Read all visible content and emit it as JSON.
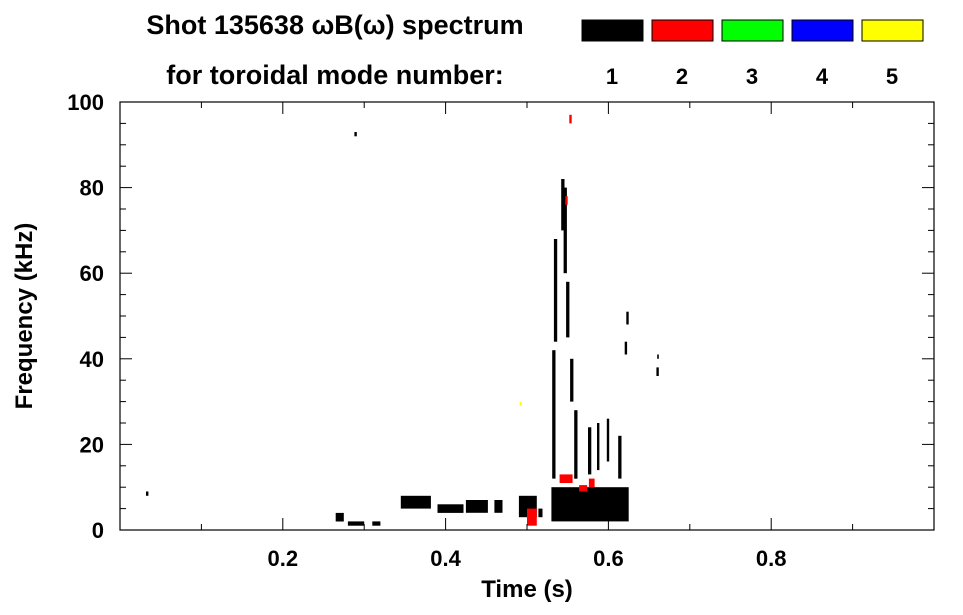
{
  "chart_data": {
    "type": "heatmap",
    "title_line1": "Shot 135638 ωB(ω) spectrum",
    "title_line2": "for toroidal mode number:",
    "xlabel": "Time (s)",
    "ylabel": "Frequency (kHz)",
    "xlim": [
      0.0,
      1.0
    ],
    "ylim": [
      0,
      100
    ],
    "xticks": [
      {
        "value": 0.2,
        "label": "0.2"
      },
      {
        "value": 0.4,
        "label": "0.4"
      },
      {
        "value": 0.6,
        "label": "0.6"
      },
      {
        "value": 0.8,
        "label": "0.8"
      }
    ],
    "yticks": [
      {
        "value": 0,
        "label": "0"
      },
      {
        "value": 20,
        "label": "20"
      },
      {
        "value": 40,
        "label": "40"
      },
      {
        "value": 60,
        "label": "60"
      },
      {
        "value": 80,
        "label": "80"
      },
      {
        "value": 100,
        "label": "100"
      }
    ],
    "grid": false,
    "legend_position": "top-right",
    "legend": [
      {
        "mode": "1",
        "color": "#000000"
      },
      {
        "mode": "2",
        "color": "#ff0000"
      },
      {
        "mode": "3",
        "color": "#00ff00"
      },
      {
        "mode": "4",
        "color": "#0000ff"
      },
      {
        "mode": "5",
        "color": "#ffff00"
      }
    ],
    "features": [
      {
        "mode": "1",
        "t": [
          0.53,
          0.625
        ],
        "f": [
          2,
          10
        ]
      },
      {
        "mode": "1",
        "t": [
          0.531,
          0.535
        ],
        "f": [
          12,
          42
        ]
      },
      {
        "mode": "1",
        "t": [
          0.533,
          0.537
        ],
        "f": [
          44,
          68
        ]
      },
      {
        "mode": "1",
        "t": [
          0.542,
          0.546
        ],
        "f": [
          70,
          82
        ]
      },
      {
        "mode": "1",
        "t": [
          0.545,
          0.549
        ],
        "f": [
          60,
          80
        ]
      },
      {
        "mode": "1",
        "t": [
          0.548,
          0.552
        ],
        "f": [
          45,
          58
        ]
      },
      {
        "mode": "1",
        "t": [
          0.553,
          0.557
        ],
        "f": [
          30,
          40
        ]
      },
      {
        "mode": "1",
        "t": [
          0.558,
          0.562
        ],
        "f": [
          12,
          28
        ]
      },
      {
        "mode": "1",
        "t": [
          0.575,
          0.579
        ],
        "f": [
          13,
          24
        ]
      },
      {
        "mode": "1",
        "t": [
          0.586,
          0.589
        ],
        "f": [
          14,
          25
        ]
      },
      {
        "mode": "1",
        "t": [
          0.598,
          0.601
        ],
        "f": [
          16,
          26
        ]
      },
      {
        "mode": "1",
        "t": [
          0.612,
          0.616
        ],
        "f": [
          12,
          22
        ]
      },
      {
        "mode": "1",
        "t": [
          0.62,
          0.623
        ],
        "f": [
          41,
          44
        ]
      },
      {
        "mode": "1",
        "t": [
          0.622,
          0.625
        ],
        "f": [
          48,
          51
        ]
      },
      {
        "mode": "1",
        "t": [
          0.659,
          0.662
        ],
        "f": [
          36,
          38
        ]
      },
      {
        "mode": "1",
        "t": [
          0.66,
          0.662
        ],
        "f": [
          40,
          41
        ]
      },
      {
        "mode": "1",
        "t": [
          0.345,
          0.382
        ],
        "f": [
          5,
          8
        ]
      },
      {
        "mode": "1",
        "t": [
          0.39,
          0.422
        ],
        "f": [
          4,
          6
        ]
      },
      {
        "mode": "1",
        "t": [
          0.425,
          0.452
        ],
        "f": [
          4,
          7
        ]
      },
      {
        "mode": "1",
        "t": [
          0.46,
          0.47
        ],
        "f": [
          4,
          7
        ]
      },
      {
        "mode": "1",
        "t": [
          0.49,
          0.512
        ],
        "f": [
          3,
          8
        ]
      },
      {
        "mode": "1",
        "t": [
          0.514,
          0.519
        ],
        "f": [
          3,
          5
        ]
      },
      {
        "mode": "1",
        "t": [
          0.28,
          0.3
        ],
        "f": [
          1,
          2
        ]
      },
      {
        "mode": "1",
        "t": [
          0.31,
          0.32
        ],
        "f": [
          1,
          2
        ]
      },
      {
        "mode": "1",
        "t": [
          0.265,
          0.275
        ],
        "f": [
          2,
          4
        ]
      },
      {
        "mode": "1",
        "t": [
          0.288,
          0.291
        ],
        "f": [
          92,
          93
        ]
      },
      {
        "mode": "1",
        "t": [
          0.032,
          0.035
        ],
        "f": [
          8,
          9
        ]
      },
      {
        "mode": "2",
        "t": [
          0.5,
          0.512
        ],
        "f": [
          1,
          5
        ]
      },
      {
        "mode": "2",
        "t": [
          0.54,
          0.556
        ],
        "f": [
          11,
          13
        ]
      },
      {
        "mode": "2",
        "t": [
          0.564,
          0.574
        ],
        "f": [
          9,
          10.5
        ]
      },
      {
        "mode": "2",
        "t": [
          0.576,
          0.583
        ],
        "f": [
          10,
          12
        ]
      },
      {
        "mode": "2",
        "t": [
          0.547,
          0.55
        ],
        "f": [
          76,
          78
        ]
      },
      {
        "mode": "2",
        "t": [
          0.552,
          0.555
        ],
        "f": [
          95,
          97
        ]
      },
      {
        "mode": "5",
        "t": [
          0.491,
          0.493
        ],
        "f": [
          29,
          30
        ]
      }
    ]
  }
}
